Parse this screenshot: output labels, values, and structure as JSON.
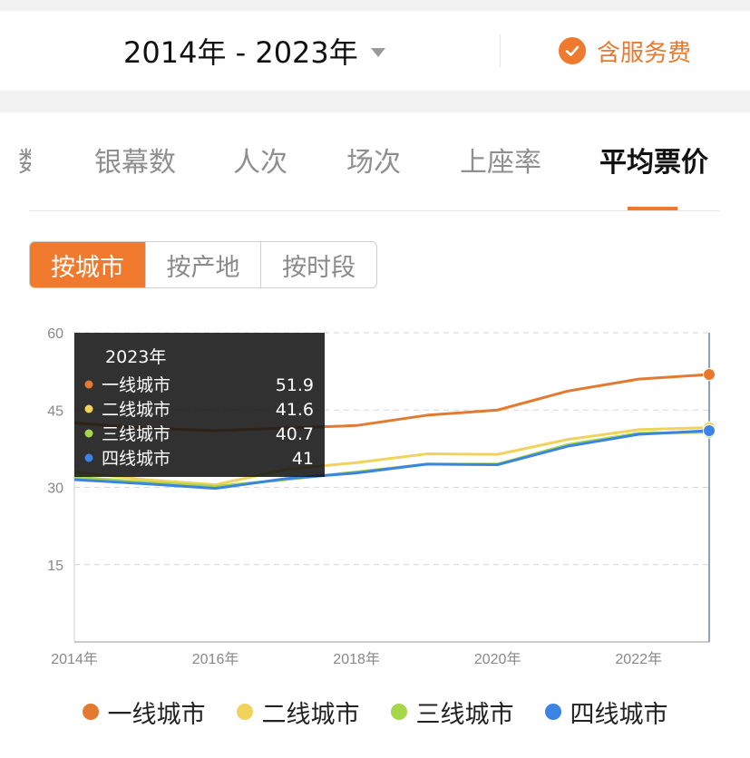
{
  "header": {
    "date_range": "2014年 - 2023年",
    "fee_label": "含服务费"
  },
  "tabs": {
    "partial": "数",
    "items": [
      "银幕数",
      "人次",
      "场次",
      "上座率",
      "平均票价"
    ]
  },
  "segments": [
    "按城市",
    "按产地",
    "按时段"
  ],
  "colors": {
    "accent": "#ef7a2e",
    "tier1": "#e37a2f",
    "tier2": "#f0d35a",
    "tier3": "#a6d64a",
    "tier4": "#3b84e3"
  },
  "tooltip": {
    "title": "2023年",
    "rows": [
      {
        "label": "一线城市",
        "value": "51.9"
      },
      {
        "label": "二线城市",
        "value": "41.6"
      },
      {
        "label": "三线城市",
        "value": "40.7"
      },
      {
        "label": "四线城市",
        "value": "41"
      }
    ]
  },
  "chart_data": {
    "type": "line",
    "x": [
      2014,
      2015,
      2016,
      2017,
      2018,
      2019,
      2020,
      2021,
      2022,
      2023
    ],
    "xticks": [
      "2014年",
      "2016年",
      "2018年",
      "2020年",
      "2022年"
    ],
    "xtick_values": [
      2014,
      2016,
      2018,
      2020,
      2022
    ],
    "yticks": [
      "60",
      "45",
      "30",
      "15"
    ],
    "ytick_values": [
      60,
      45,
      30,
      15
    ],
    "ylim": [
      0,
      60
    ],
    "grid": true,
    "legend_position": "bottom",
    "highlight_x": 2023,
    "series": [
      {
        "name": "一线城市",
        "values": [
          42.5,
          41.5,
          41.0,
          41.5,
          42.0,
          44.0,
          45.0,
          48.7,
          51.0,
          51.9
        ]
      },
      {
        "name": "二线城市",
        "values": [
          33.0,
          31.5,
          30.5,
          33.5,
          34.8,
          36.5,
          36.4,
          39.3,
          41.2,
          41.6
        ]
      },
      {
        "name": "三线城市",
        "values": [
          32.0,
          31.0,
          30.2,
          31.5,
          33.0,
          34.5,
          34.5,
          38.3,
          40.5,
          40.7
        ]
      },
      {
        "name": "四线城市",
        "values": [
          31.5,
          30.7,
          29.8,
          31.7,
          32.8,
          34.5,
          34.4,
          38.0,
          40.3,
          41.0
        ]
      }
    ]
  },
  "legend": {
    "items": [
      "一线城市",
      "二线城市",
      "三线城市",
      "四线城市"
    ]
  }
}
